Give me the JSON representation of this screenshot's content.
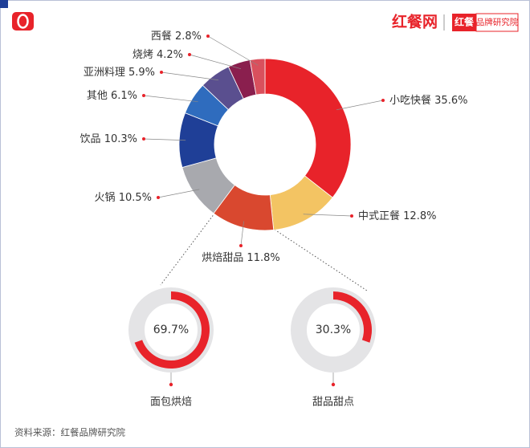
{
  "header": {
    "logo": "红餐网",
    "brand_mark": "红餐",
    "brand": "品牌研究院"
  },
  "source": "资料来源：红餐品牌研究院",
  "chart_data": [
    {
      "type": "donut",
      "categories": [
        "小吃快餐",
        "中式正餐",
        "烘焙甜品",
        "火锅",
        "饮品",
        "其他",
        "亚洲料理",
        "烧烤",
        "西餐"
      ],
      "values": [
        35.6,
        12.8,
        11.8,
        10.5,
        10.3,
        6.1,
        5.9,
        4.2,
        2.8
      ],
      "value_labels": [
        "35.6%",
        "12.8%",
        "11.8%",
        "10.5%",
        "10.3%",
        "6.1%",
        "5.9%",
        "4.2%",
        "2.8%"
      ],
      "colors": [
        "#e8232a",
        "#f3c463",
        "#d9482f",
        "#a8a9ae",
        "#1f3f97",
        "#2f6cbe",
        "#5a4f8f",
        "#8a1f4e",
        "#d9505d"
      ]
    },
    {
      "type": "gauge",
      "categories": [
        "面包烘焙",
        "甜品甜点"
      ],
      "values": [
        69.7,
        30.3
      ],
      "value_labels": [
        "69.7%",
        "30.3%"
      ],
      "color": "#e8232a",
      "track_color": "#e4e4e6"
    }
  ]
}
